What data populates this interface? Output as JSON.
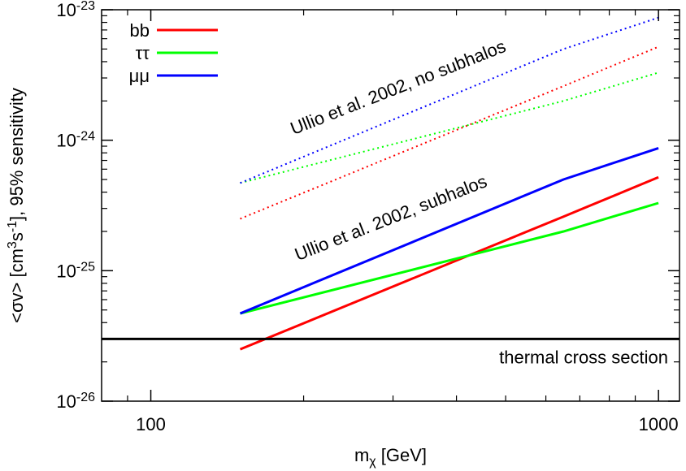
{
  "chart_data": {
    "type": "line",
    "xscale": "log",
    "yscale": "log",
    "xlim": [
      80,
      1100
    ],
    "ylim": [
      1e-26,
      1e-23
    ],
    "xlabel": {
      "main": "m",
      "sub": "χ",
      "rest": " [GeV]"
    },
    "ylabel": {
      "p1": "<σv> [cm",
      "sup1": "3",
      "p2": "s",
      "sup2": "-1",
      "p3": "], 95% sensitivity"
    },
    "xticks": [
      {
        "value": 100,
        "label": "100"
      },
      {
        "value": 1000,
        "label": "1000"
      }
    ],
    "yticks": [
      {
        "value": 1e-26,
        "base": "10",
        "exp": "-26"
      },
      {
        "value": 1e-25,
        "base": "10",
        "exp": "-25"
      },
      {
        "value": 1e-24,
        "base": "10",
        "exp": "-24"
      },
      {
        "value": 1e-23,
        "base": "10",
        "exp": "-23"
      }
    ],
    "legend": {
      "placement": "top-left"
    },
    "series": [
      {
        "name": "bb",
        "color": "#ff0000",
        "style": "dotted",
        "group": "no subhalos",
        "x": [
          150,
          650,
          1000
        ],
        "y": [
          2.5e-25,
          2.6e-24,
          5.2e-24
        ]
      },
      {
        "name": "ττ",
        "color": "#00ff00",
        "style": "dotted",
        "group": "no subhalos",
        "x": [
          150,
          650,
          1000
        ],
        "y": [
          4.7e-25,
          2e-24,
          3.3e-24
        ]
      },
      {
        "name": "μμ",
        "color": "#0000ff",
        "style": "dotted",
        "group": "no subhalos",
        "x": [
          150,
          650,
          1000
        ],
        "y": [
          4.7e-25,
          5e-24,
          8.7e-24
        ]
      },
      {
        "name": "bb",
        "color": "#ff0000",
        "style": "solid",
        "group": "subhalos",
        "x": [
          150,
          650,
          1000
        ],
        "y": [
          2.5e-26,
          2.6e-25,
          5.2e-25
        ]
      },
      {
        "name": "ττ",
        "color": "#00ff00",
        "style": "solid",
        "group": "subhalos",
        "x": [
          150,
          650,
          1000
        ],
        "y": [
          4.7e-26,
          2e-25,
          3.3e-25
        ]
      },
      {
        "name": "μμ",
        "color": "#0000ff",
        "style": "solid",
        "group": "subhalos",
        "x": [
          150,
          650,
          1000
        ],
        "y": [
          4.7e-26,
          5e-25,
          8.7e-25
        ]
      }
    ],
    "hline": {
      "y": 3e-26,
      "color": "#000000",
      "label": "thermal cross section"
    },
    "annotations": [
      {
        "text": "Ullio et al. 2002, no subhalos",
        "x": 310,
        "y": 2.3e-24
      },
      {
        "text": "Ullio et al. 2002, subhalos",
        "x": 300,
        "y": 2.3e-25
      }
    ]
  }
}
